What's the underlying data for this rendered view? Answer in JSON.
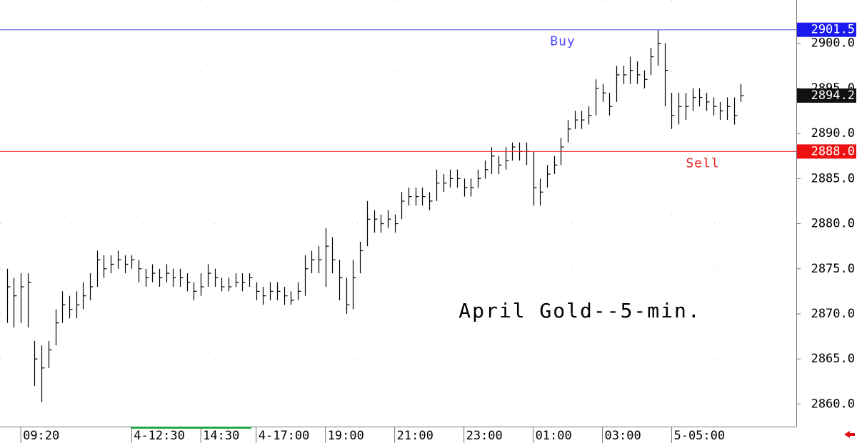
{
  "chart_data": {
    "type": "ohlc",
    "title": "April Gold--5-min.",
    "color": "#000000",
    "grid": true,
    "xlim": [
      -1,
      114
    ],
    "ylim": [
      2857.5,
      2904.8
    ],
    "yticks": [
      {
        "value": 2860,
        "label": "2860.0"
      },
      {
        "value": 2865,
        "label": "2865.0"
      },
      {
        "value": 2870,
        "label": "2870.0"
      },
      {
        "value": 2875,
        "label": "2875.0"
      },
      {
        "value": 2880,
        "label": "2880.0"
      },
      {
        "value": 2885,
        "label": "2885.0"
      },
      {
        "value": 2890,
        "label": "2890.0"
      },
      {
        "value": 2895,
        "label": "2895.0"
      },
      {
        "value": 2900,
        "label": "2900.0"
      }
    ],
    "xticks": [
      {
        "value": 2,
        "label": "09:20"
      },
      {
        "value": 18,
        "label": "4-12:30"
      },
      {
        "value": 28,
        "label": "14:30"
      },
      {
        "value": 36,
        "label": "4-17:00"
      },
      {
        "value": 46,
        "label": "19:00"
      },
      {
        "value": 56,
        "label": "21:00"
      },
      {
        "value": 66,
        "label": "23:00"
      },
      {
        "value": 76,
        "label": "01:00"
      },
      {
        "value": 86,
        "label": "03:00"
      },
      {
        "value": 96,
        "label": "5-05:00"
      }
    ],
    "high": [
      2875,
      2874,
      2874.5,
      2874.5,
      2867,
      2866.5,
      2867,
      2870.5,
      2872.5,
      2872,
      2872.5,
      2873.5,
      2874.5,
      2877,
      2876.5,
      2876.5,
      2877,
      2876.5,
      2876.5,
      2876,
      2875,
      2875.5,
      2875,
      2875.5,
      2875,
      2875,
      2874.5,
      2873.5,
      2874.5,
      2875.5,
      2875,
      2874,
      2874,
      2874.5,
      2874.5,
      2874.5,
      2873.5,
      2873,
      2873.5,
      2873.5,
      2873,
      2872.5,
      2873.5,
      2876.5,
      2877,
      2877.5,
      2879.5,
      2878.5,
      2876,
      2874,
      2876,
      2878,
      2882.5,
      2881.5,
      2881,
      2881.5,
      2881,
      2883.5,
      2884,
      2884,
      2884,
      2883.5,
      2886,
      2885.5,
      2886,
      2886,
      2885,
      2885,
      2886,
      2887,
      2888.5,
      2887.5,
      2888.5,
      2889,
      2889,
      2889,
      2888,
      2885,
      2886.5,
      2887.5,
      2889.5,
      2891.5,
      2892.5,
      2892.5,
      2893,
      2896,
      2895.5,
      2894.5,
      2897.5,
      2897.5,
      2898.5,
      2898,
      2897,
      2899.5,
      2901.5,
      2900,
      2894.5,
      2894.5,
      2894.5,
      2895,
      2895,
      2894.5,
      2894,
      2893.5,
      2894,
      2894,
      2895.5
    ],
    "low": [
      2869,
      2868.5,
      2869,
      2868.5,
      2862,
      2860.2,
      2864,
      2866.5,
      2869,
      2869.5,
      2869.5,
      2870.5,
      2871.5,
      2873,
      2874,
      2874.5,
      2875,
      2874.5,
      2875,
      2873.5,
      2873,
      2873.5,
      2873,
      2873.5,
      2873,
      2873,
      2872.5,
      2871.5,
      2872,
      2873,
      2873,
      2872.5,
      2872.5,
      2873,
      2872.5,
      2873,
      2871.5,
      2871,
      2871.5,
      2871.5,
      2871,
      2871,
      2871.5,
      2872,
      2874.5,
      2874.5,
      2873,
      2874.5,
      2871.5,
      2870,
      2870.5,
      2874.5,
      2877.5,
      2879,
      2879,
      2879.5,
      2879,
      2880.5,
      2882,
      2882,
      2882,
      2881.5,
      2882.5,
      2883.5,
      2884,
      2884,
      2883,
      2883,
      2884,
      2885,
      2885.5,
      2885.5,
      2886,
      2887,
      2887,
      2886.5,
      2882,
      2882,
      2884,
      2885.5,
      2886.5,
      2889,
      2890.5,
      2890.5,
      2891,
      2892,
      2893.5,
      2892,
      2893.5,
      2895.5,
      2895.5,
      2895.5,
      2895,
      2896.5,
      2897.5,
      2893,
      2890.5,
      2891,
      2891.5,
      2892.5,
      2893,
      2892.5,
      2892,
      2891.5,
      2891.5,
      2891,
      2893.5
    ],
    "close": [
      2873,
      2872,
      2873,
      2873.5,
      2865,
      2864,
      2866,
      2869,
      2871,
      2870.5,
      2871,
      2872,
      2873,
      2876,
      2875,
      2875.5,
      2876,
      2875.5,
      2876,
      2875,
      2874,
      2874.5,
      2874,
      2874.5,
      2874,
      2874,
      2873.5,
      2872.5,
      2873,
      2874.5,
      2874,
      2873,
      2873,
      2873.5,
      2873.5,
      2874,
      2872.5,
      2872,
      2872.5,
      2872.5,
      2872,
      2871.5,
      2872.5,
      2875,
      2876,
      2876,
      2877.5,
      2876,
      2874,
      2871,
      2874,
      2877,
      2880.5,
      2880.5,
      2880,
      2880.5,
      2880,
      2882.5,
      2883,
      2883,
      2883,
      2882.5,
      2884.5,
      2884.5,
      2885,
      2885,
      2884,
      2884,
      2885,
      2886,
      2887.5,
      2886.5,
      2887,
      2888.5,
      2888,
      2888,
      2884,
      2883.5,
      2885.5,
      2886.5,
      2888.5,
      2890.5,
      2891.5,
      2891.5,
      2892,
      2895,
      2894.5,
      2893,
      2896.5,
      2896.5,
      2897,
      2896.5,
      2896,
      2898.5,
      2900,
      2897,
      2892,
      2893,
      2893,
      2894,
      2894,
      2893.5,
      2893,
      2892.5,
      2893,
      2892,
      2894.2
    ],
    "levels": [
      {
        "text": "Buy",
        "value": 2901.5,
        "value_label": "2901.5",
        "color": "#4a4aff",
        "box_color": "#1a1aee"
      },
      {
        "text": "Sell",
        "value": 2888.0,
        "value_label": "2888.0",
        "color": "#ee2222",
        "box_color": "#ee1111"
      }
    ],
    "last": {
      "value": 2894.2,
      "value_label": "2894.2",
      "box_color": "#111111"
    }
  }
}
